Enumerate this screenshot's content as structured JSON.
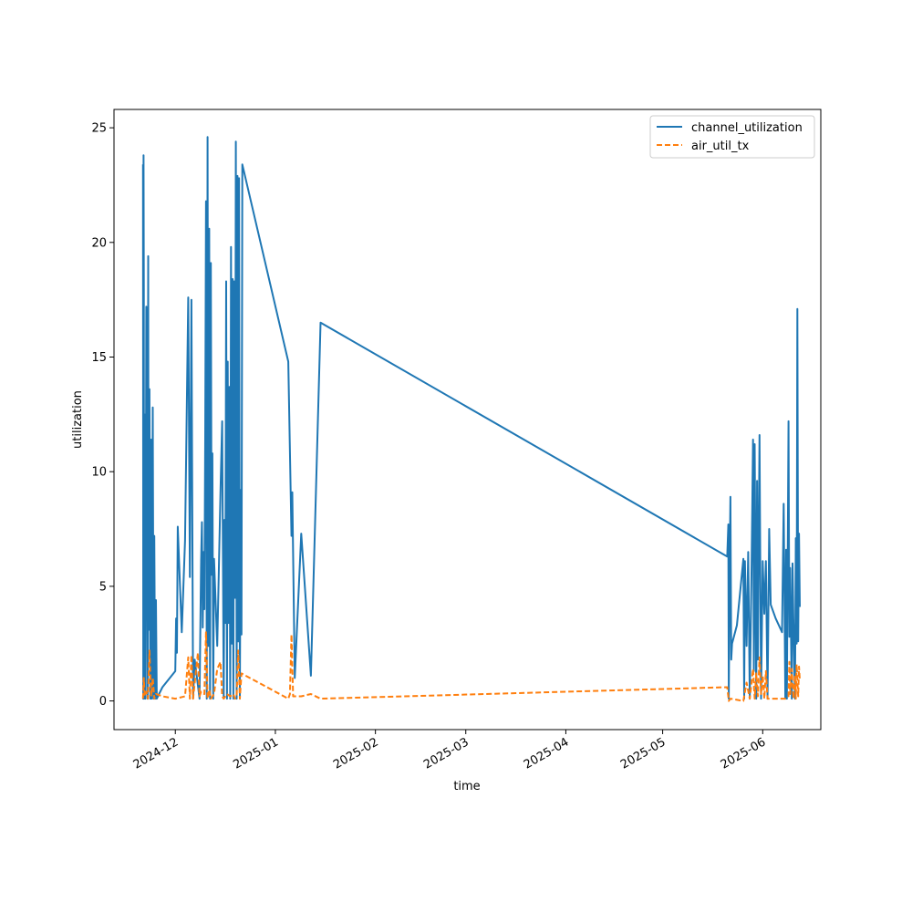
{
  "chart_data": {
    "type": "line",
    "xlabel": "time",
    "ylabel": "utilization",
    "x_axis_type": "date",
    "xlim": [
      "2024-11-12",
      "2025-06-19"
    ],
    "ylim": [
      -1.25,
      25.8
    ],
    "x_tick_labels": [
      "2024-12",
      "2025-01",
      "2025-02",
      "2025-03",
      "2025-04",
      "2025-05",
      "2025-06"
    ],
    "x_tick_dates": [
      "2024-12-01",
      "2025-01-01",
      "2025-02-01",
      "2025-03-01",
      "2025-04-01",
      "2025-05-01",
      "2025-06-01"
    ],
    "y_ticks": [
      0,
      5,
      10,
      15,
      20,
      25
    ],
    "y_tick_labels": [
      "0",
      "5",
      "10",
      "15",
      "20",
      "25"
    ],
    "grid": false,
    "legend_position": "top-right",
    "series": [
      {
        "name": "channel_utilization",
        "color": "#1f77b4",
        "line_style": "solid",
        "points": [
          [
            "2024-11-21T00:00",
            23.4
          ],
          [
            "2024-11-21T02:00",
            0.1
          ],
          [
            "2024-11-21T04:00",
            23.8
          ],
          [
            "2024-11-21T06:00",
            18.0
          ],
          [
            "2024-11-21T08:00",
            0.1
          ],
          [
            "2024-11-21T10:00",
            12.5
          ],
          [
            "2024-11-21T12:00",
            7.4
          ],
          [
            "2024-11-21T14:00",
            11.9
          ],
          [
            "2024-11-21T18:00",
            0.1
          ],
          [
            "2024-11-22T00:00",
            17.2
          ],
          [
            "2024-11-22T06:00",
            9.8
          ],
          [
            "2024-11-22T10:00",
            0.1
          ],
          [
            "2024-11-22T14:00",
            19.4
          ],
          [
            "2024-11-22T18:00",
            3.1
          ],
          [
            "2024-11-23T00:00",
            13.6
          ],
          [
            "2024-11-23T06:00",
            0.1
          ],
          [
            "2024-11-23T12:00",
            11.4
          ],
          [
            "2024-11-23T16:00",
            0.1
          ],
          [
            "2024-11-24T00:00",
            12.8
          ],
          [
            "2024-11-24T06:00",
            0.1
          ],
          [
            "2024-11-24T12:00",
            7.2
          ],
          [
            "2024-11-24T18:00",
            0.1
          ],
          [
            "2024-11-25T00:00",
            4.4
          ],
          [
            "2024-11-25T06:00",
            0.1
          ],
          [
            "2024-11-27T00:00",
            0.6
          ],
          [
            "2024-12-01T00:00",
            1.3
          ],
          [
            "2024-12-01T06:00",
            3.6
          ],
          [
            "2024-12-01T12:00",
            2.1
          ],
          [
            "2024-12-01T18:00",
            7.6
          ],
          [
            "2024-12-03T00:00",
            3.0
          ],
          [
            "2024-12-04T00:00",
            7.0
          ],
          [
            "2024-12-05T00:00",
            17.6
          ],
          [
            "2024-12-05T12:00",
            5.4
          ],
          [
            "2024-12-06T00:00",
            17.5
          ],
          [
            "2024-12-06T12:00",
            0.1
          ],
          [
            "2024-12-07T00:00",
            1.8
          ],
          [
            "2024-12-08T12:00",
            0.1
          ],
          [
            "2024-12-09T00:00",
            6.1
          ],
          [
            "2024-12-09T06:00",
            7.8
          ],
          [
            "2024-12-09T12:00",
            3.2
          ],
          [
            "2024-12-09T18:00",
            6.5
          ],
          [
            "2024-12-10T00:00",
            4.0
          ],
          [
            "2024-12-10T06:00",
            11.5
          ],
          [
            "2024-12-10T12:00",
            21.8
          ],
          [
            "2024-12-10T18:00",
            0.1
          ],
          [
            "2024-12-11T00:00",
            24.6
          ],
          [
            "2024-12-11T06:00",
            2.4
          ],
          [
            "2024-12-11T12:00",
            20.6
          ],
          [
            "2024-12-11T18:00",
            0.1
          ],
          [
            "2024-12-12T00:00",
            19.1
          ],
          [
            "2024-12-12T06:00",
            5.5
          ],
          [
            "2024-12-12T12:00",
            10.8
          ],
          [
            "2024-12-12T18:00",
            0.1
          ],
          [
            "2024-12-13T00:00",
            6.2
          ],
          [
            "2024-12-14T00:00",
            2.4
          ],
          [
            "2024-12-15T00:00",
            9.2
          ],
          [
            "2024-12-15T12:00",
            12.2
          ],
          [
            "2024-12-16T00:00",
            0.1
          ],
          [
            "2024-12-16T06:00",
            7.9
          ],
          [
            "2024-12-16T12:00",
            3.4
          ],
          [
            "2024-12-16T18:00",
            18.3
          ],
          [
            "2024-12-17T00:00",
            0.1
          ],
          [
            "2024-12-17T06:00",
            14.8
          ],
          [
            "2024-12-17T12:00",
            3.4
          ],
          [
            "2024-12-17T18:00",
            13.7
          ],
          [
            "2024-12-18T00:00",
            0.1
          ],
          [
            "2024-12-18T06:00",
            19.8
          ],
          [
            "2024-12-18T12:00",
            2.5
          ],
          [
            "2024-12-18T18:00",
            18.4
          ],
          [
            "2024-12-19T00:00",
            0.1
          ],
          [
            "2024-12-19T06:00",
            18.3
          ],
          [
            "2024-12-19T12:00",
            4.5
          ],
          [
            "2024-12-19T18:00",
            24.4
          ],
          [
            "2024-12-20T00:00",
            0.1
          ],
          [
            "2024-12-20T06:00",
            22.9
          ],
          [
            "2024-12-20T12:00",
            2.6
          ],
          [
            "2024-12-20T18:00",
            22.8
          ],
          [
            "2024-12-21T00:00",
            0.1
          ],
          [
            "2024-12-21T06:00",
            9.2
          ],
          [
            "2024-12-21T12:00",
            2.9
          ],
          [
            "2024-12-21T18:00",
            23.4
          ],
          [
            "2025-01-05T00:00",
            14.8
          ],
          [
            "2025-01-06T00:00",
            7.2
          ],
          [
            "2025-01-06T06:00",
            9.1
          ],
          [
            "2025-01-07T00:00",
            1.0
          ],
          [
            "2025-01-09T00:00",
            7.3
          ],
          [
            "2025-01-12T00:00",
            1.1
          ],
          [
            "2025-01-15T00:00",
            16.5
          ],
          [
            "2025-05-21T00:00",
            6.3
          ],
          [
            "2025-05-21T08:00",
            7.7
          ],
          [
            "2025-05-21T12:00",
            0.1
          ],
          [
            "2025-05-21T18:00",
            5.7
          ],
          [
            "2025-05-22T00:00",
            8.9
          ],
          [
            "2025-05-22T06:00",
            1.8
          ],
          [
            "2025-05-22T12:00",
            2.5
          ],
          [
            "2025-05-24T00:00",
            3.3
          ],
          [
            "2025-05-26T00:00",
            6.2
          ],
          [
            "2025-05-26T06:00",
            0.1
          ],
          [
            "2025-05-26T12:00",
            6.1
          ],
          [
            "2025-05-27T00:00",
            2.4
          ],
          [
            "2025-05-27T12:00",
            6.5
          ],
          [
            "2025-05-28T00:00",
            0.1
          ],
          [
            "2025-05-28T12:00",
            5.2
          ],
          [
            "2025-05-29T00:00",
            11.4
          ],
          [
            "2025-05-29T06:00",
            1.3
          ],
          [
            "2025-05-29T12:00",
            11.2
          ],
          [
            "2025-05-30T00:00",
            0.1
          ],
          [
            "2025-05-30T06:00",
            9.6
          ],
          [
            "2025-05-30T12:00",
            1.8
          ],
          [
            "2025-05-31T00:00",
            11.6
          ],
          [
            "2025-05-31T12:00",
            0.1
          ],
          [
            "2025-06-01T00:00",
            6.1
          ],
          [
            "2025-06-01T12:00",
            3.8
          ],
          [
            "2025-06-02T00:00",
            6.1
          ],
          [
            "2025-06-02T12:00",
            0.1
          ],
          [
            "2025-06-03T00:00",
            7.5
          ],
          [
            "2025-06-03T12:00",
            4.2
          ],
          [
            "2025-06-05T00:00",
            3.6
          ],
          [
            "2025-06-07T00:00",
            3.0
          ],
          [
            "2025-06-07T12:00",
            8.6
          ],
          [
            "2025-06-08T00:00",
            0.1
          ],
          [
            "2025-06-08T06:00",
            6.6
          ],
          [
            "2025-06-08T12:00",
            0.1
          ],
          [
            "2025-06-09T00:00",
            12.2
          ],
          [
            "2025-06-09T06:00",
            2.8
          ],
          [
            "2025-06-09T12:00",
            5.8
          ],
          [
            "2025-06-10T00:00",
            0.1
          ],
          [
            "2025-06-10T06:00",
            6.0
          ],
          [
            "2025-06-10T12:00",
            3.7
          ],
          [
            "2025-06-11T00:00",
            0.1
          ],
          [
            "2025-06-11T06:00",
            7.1
          ],
          [
            "2025-06-11T12:00",
            2.5
          ],
          [
            "2025-06-11T18:00",
            17.1
          ],
          [
            "2025-06-12T00:00",
            2.6
          ],
          [
            "2025-06-12T06:00",
            7.3
          ],
          [
            "2025-06-12T12:00",
            4.1
          ]
        ]
      },
      {
        "name": "air_util_tx",
        "color": "#ff7f0e",
        "line_style": "dashed",
        "points": [
          [
            "2024-11-21T00:00",
            0.1
          ],
          [
            "2024-11-21T06:00",
            1.0
          ],
          [
            "2024-11-21T12:00",
            0.2
          ],
          [
            "2024-11-22T00:00",
            0.4
          ],
          [
            "2024-11-22T12:00",
            0.1
          ],
          [
            "2024-11-23T00:00",
            2.2
          ],
          [
            "2024-11-23T12:00",
            0.2
          ],
          [
            "2024-11-24T00:00",
            1.0
          ],
          [
            "2024-11-24T12:00",
            0.1
          ],
          [
            "2024-11-25T00:00",
            0.3
          ],
          [
            "2024-11-27T00:00",
            0.2
          ],
          [
            "2024-12-01T00:00",
            0.1
          ],
          [
            "2024-12-04T00:00",
            0.2
          ],
          [
            "2024-12-05T00:00",
            1.9
          ],
          [
            "2024-12-05T12:00",
            0.1
          ],
          [
            "2024-12-06T00:00",
            2.0
          ],
          [
            "2024-12-06T12:00",
            0.1
          ],
          [
            "2024-12-08T00:00",
            2.1
          ],
          [
            "2024-12-08T12:00",
            0.2
          ],
          [
            "2024-12-09T00:00",
            0.4
          ],
          [
            "2024-12-10T00:00",
            0.3
          ],
          [
            "2024-12-10T12:00",
            3.0
          ],
          [
            "2024-12-11T00:00",
            0.1
          ],
          [
            "2024-12-11T12:00",
            0.5
          ],
          [
            "2024-12-12T00:00",
            0.1
          ],
          [
            "2024-12-13T00:00",
            0.3
          ],
          [
            "2024-12-14T00:00",
            1.4
          ],
          [
            "2024-12-15T00:00",
            1.7
          ],
          [
            "2024-12-15T12:00",
            0.2
          ],
          [
            "2024-12-16T00:00",
            0.1
          ],
          [
            "2024-12-17T00:00",
            0.3
          ],
          [
            "2024-12-18T00:00",
            0.2
          ],
          [
            "2024-12-19T00:00",
            0.3
          ],
          [
            "2024-12-19T12:00",
            0.1
          ],
          [
            "2024-12-20T00:00",
            0.2
          ],
          [
            "2024-12-20T12:00",
            2.2
          ],
          [
            "2024-12-21T00:00",
            0.1
          ],
          [
            "2024-12-21T12:00",
            1.2
          ],
          [
            "2025-01-05T00:00",
            0.1
          ],
          [
            "2025-01-05T12:00",
            0.3
          ],
          [
            "2025-01-06T00:00",
            2.9
          ],
          [
            "2025-01-06T12:00",
            0.2
          ],
          [
            "2025-01-09T00:00",
            0.2
          ],
          [
            "2025-01-12T00:00",
            0.3
          ],
          [
            "2025-01-15T00:00",
            0.1
          ],
          [
            "2025-05-21T00:00",
            0.6
          ],
          [
            "2025-05-21T12:00",
            0.0
          ],
          [
            "2025-05-22T00:00",
            0.1
          ],
          [
            "2025-05-26T00:00",
            0.0
          ],
          [
            "2025-05-27T00:00",
            0.8
          ],
          [
            "2025-05-28T00:00",
            0.1
          ],
          [
            "2025-05-29T00:00",
            1.4
          ],
          [
            "2025-05-29T12:00",
            0.1
          ],
          [
            "2025-05-30T00:00",
            1.2
          ],
          [
            "2025-05-30T12:00",
            0.2
          ],
          [
            "2025-05-31T00:00",
            1.9
          ],
          [
            "2025-05-31T12:00",
            0.3
          ],
          [
            "2025-06-01T00:00",
            1.1
          ],
          [
            "2025-06-01T12:00",
            0.1
          ],
          [
            "2025-06-02T00:00",
            1.3
          ],
          [
            "2025-06-02T12:00",
            0.1
          ],
          [
            "2025-06-05T00:00",
            0.1
          ],
          [
            "2025-06-08T00:00",
            0.1
          ],
          [
            "2025-06-09T00:00",
            0.2
          ],
          [
            "2025-06-09T06:00",
            1.7
          ],
          [
            "2025-06-09T12:00",
            0.3
          ],
          [
            "2025-06-10T00:00",
            1.4
          ],
          [
            "2025-06-10T12:00",
            0.1
          ],
          [
            "2025-06-11T00:00",
            1.1
          ],
          [
            "2025-06-11T06:00",
            0.1
          ],
          [
            "2025-06-11T12:00",
            1.6
          ],
          [
            "2025-06-12T00:00",
            0.2
          ],
          [
            "2025-06-12T06:00",
            1.5
          ],
          [
            "2025-06-12T12:00",
            0.9
          ]
        ]
      }
    ]
  }
}
